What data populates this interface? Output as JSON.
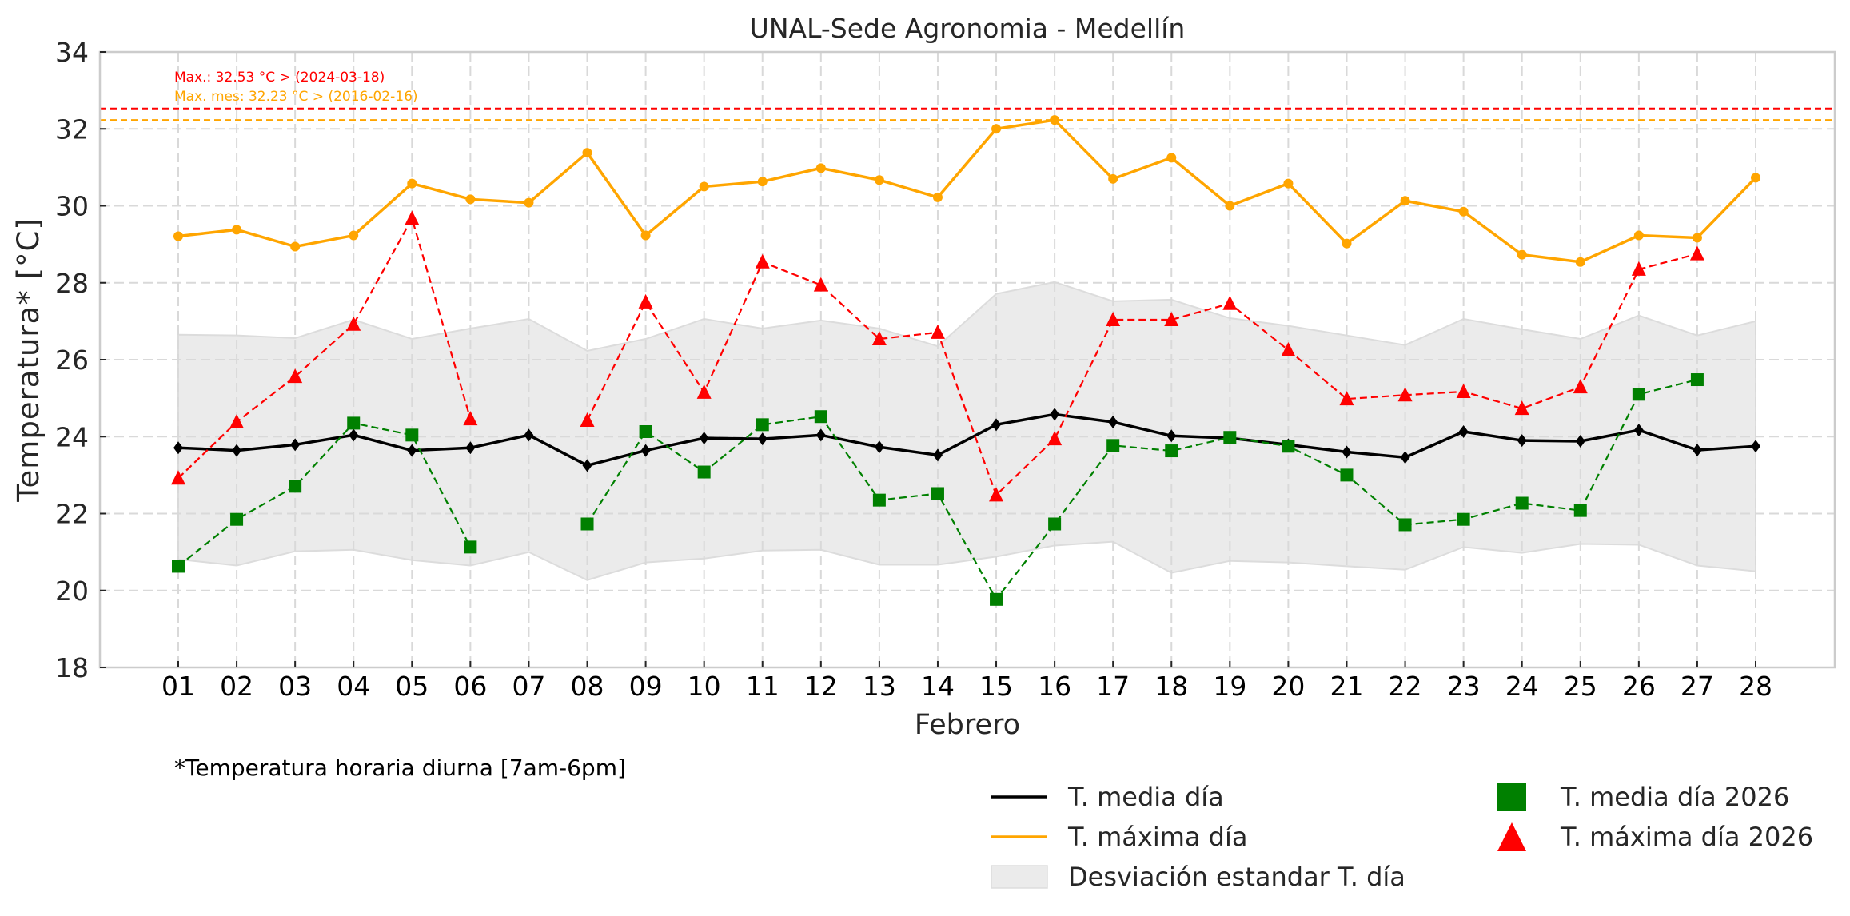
{
  "chart_data": {
    "type": "line",
    "title": "UNAL-Sede Agronomia - Medellín",
    "xlabel": "Febrero",
    "ylabel": "Temperatura* [°C]",
    "ylim": [
      18,
      34
    ],
    "yticks": [
      18,
      20,
      22,
      24,
      26,
      28,
      30,
      32,
      34
    ],
    "grid": true,
    "categories": [
      "01",
      "02",
      "03",
      "04",
      "05",
      "06",
      "07",
      "08",
      "09",
      "10",
      "11",
      "12",
      "13",
      "14",
      "15",
      "16",
      "17",
      "18",
      "19",
      "20",
      "21",
      "22",
      "23",
      "24",
      "25",
      "26",
      "27",
      "28"
    ],
    "note": "*Temperatura horaria diurna [7am-6pm]",
    "reference_lines": [
      {
        "name": "max_record",
        "value": 32.53,
        "color": "#ff0000",
        "label": "Max.: 32.53 °C  >  (2024-03-18)"
      },
      {
        "name": "max_month",
        "value": 32.23,
        "color": "#ffa500",
        "label": "Max. mes: 32.23 °C  >  (2016-02-16)"
      }
    ],
    "band": {
      "name": "Desviación estandar T. día",
      "color": "#ebebeb",
      "upper": [
        26.65,
        26.63,
        26.56,
        27.04,
        26.54,
        26.81,
        27.06,
        26.23,
        26.54,
        27.06,
        26.81,
        27.02,
        26.81,
        26.35,
        27.71,
        28.02,
        27.52,
        27.56,
        27.08,
        26.88,
        26.63,
        26.38,
        27.06,
        26.79,
        26.54,
        27.15,
        26.63,
        27.0
      ],
      "lower": [
        20.81,
        20.65,
        21.02,
        21.06,
        20.79,
        20.65,
        21.0,
        20.27,
        20.73,
        20.83,
        21.04,
        21.06,
        20.67,
        20.67,
        20.88,
        21.17,
        21.27,
        20.46,
        20.77,
        20.73,
        20.63,
        20.54,
        21.13,
        20.98,
        21.21,
        21.19,
        20.65,
        20.5
      ]
    },
    "series": [
      {
        "name": "T. media día",
        "color": "#000000",
        "style": "solid",
        "marker": "diamond",
        "values": [
          23.71,
          23.64,
          23.79,
          24.04,
          23.64,
          23.71,
          24.04,
          23.25,
          23.64,
          23.96,
          23.94,
          24.04,
          23.73,
          23.52,
          24.31,
          24.58,
          24.38,
          24.02,
          23.96,
          23.79,
          23.6,
          23.46,
          24.13,
          23.9,
          23.88,
          24.17,
          23.65,
          23.75
        ]
      },
      {
        "name": "T. máxima día",
        "color": "#ffa500",
        "style": "solid",
        "marker": "circle",
        "values": [
          29.21,
          29.38,
          28.94,
          29.23,
          30.58,
          30.17,
          30.08,
          31.38,
          29.23,
          30.5,
          30.63,
          30.98,
          30.67,
          30.22,
          32.0,
          32.23,
          30.7,
          31.25,
          30.0,
          30.58,
          29.02,
          30.13,
          29.85,
          28.73,
          28.54,
          29.23,
          29.17,
          30.73
        ]
      },
      {
        "name": "T. media día 2026",
        "color": "#008000",
        "style": "dashed",
        "marker": "square",
        "values": [
          20.63,
          21.85,
          22.71,
          24.35,
          24.04,
          21.13,
          null,
          21.73,
          24.13,
          23.08,
          24.31,
          24.52,
          22.35,
          22.52,
          19.77,
          21.73,
          23.77,
          23.63,
          23.98,
          23.75,
          23.0,
          21.71,
          21.85,
          22.27,
          22.08,
          25.1,
          25.48,
          null
        ]
      },
      {
        "name": "T. máxima día 2026",
        "color": "#ff0000",
        "style": "dashed",
        "marker": "triangle",
        "values": [
          22.92,
          24.38,
          25.56,
          26.92,
          29.67,
          24.46,
          null,
          24.42,
          27.5,
          25.15,
          28.54,
          27.94,
          26.54,
          26.71,
          22.48,
          23.94,
          27.04,
          27.04,
          27.46,
          26.25,
          24.98,
          25.08,
          25.17,
          24.73,
          25.29,
          28.35,
          28.75,
          null
        ]
      }
    ],
    "legend": {
      "placement": "bottom-right",
      "items": [
        {
          "label": "T. media día",
          "kind": "line",
          "color": "#000000"
        },
        {
          "label": "T. máxima día",
          "kind": "line",
          "color": "#ffa500"
        },
        {
          "label": "Desviación estandar T. día",
          "kind": "patch",
          "color": "#ebebeb"
        },
        {
          "label": "T. media día 2026",
          "kind": "square",
          "color": "#008000"
        },
        {
          "label": "T. máxima día 2026",
          "kind": "triangle",
          "color": "#ff0000"
        }
      ]
    }
  }
}
